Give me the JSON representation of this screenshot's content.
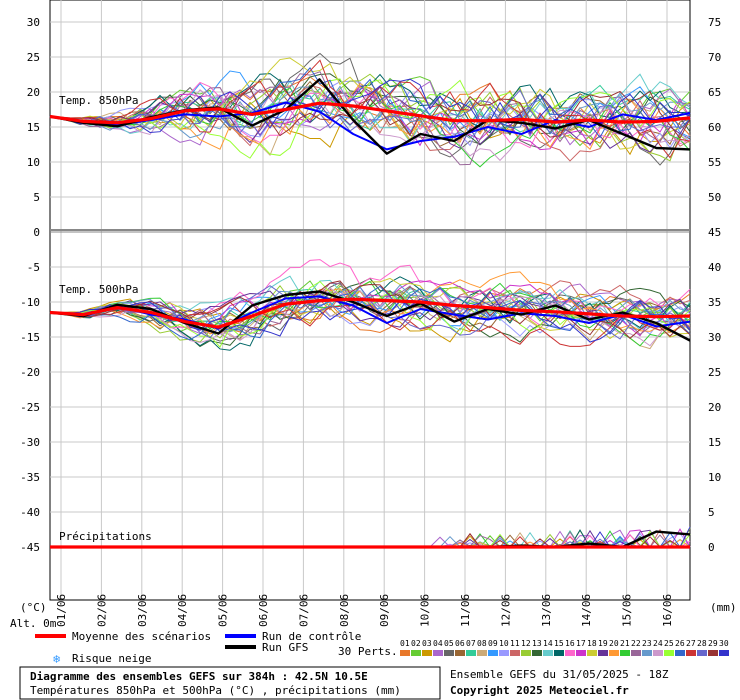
{
  "chart_data": {
    "type": "line",
    "title": "Diagramme des ensembles GEFS sur 384h : 42.5N 10.5E",
    "subtitle": "Températures 850hPa et 500hPa (°C) , précipitations (mm)",
    "run_info": "Ensemble GEFS du 31/05/2025 - 18Z",
    "copyright": "Copyright 2025 Meteociel.fr",
    "left_unit": "(°C)",
    "right_unit": "(mm)",
    "altitude": "Alt. 0m",
    "left_ticks": [
      30,
      25,
      20,
      15,
      10,
      5,
      0,
      -5,
      -10,
      -15,
      -20,
      -25,
      -30,
      -35,
      -40,
      -45
    ],
    "right_ticks": [
      75,
      70,
      65,
      60,
      55,
      50,
      45,
      40,
      35,
      30,
      25,
      20,
      15,
      10,
      5,
      0
    ],
    "dates": [
      "01/06",
      "02/06",
      "03/06",
      "04/06",
      "05/06",
      "06/06",
      "07/06",
      "08/06",
      "09/06",
      "10/06",
      "11/06",
      "12/06",
      "13/06",
      "14/06",
      "15/06",
      "16/06"
    ],
    "panels": {
      "t850": "Temp. 850hPa",
      "t500": "Temp. 500hPa",
      "precip": "Précipitations"
    },
    "legend": {
      "mean": "Moyenne des scénarios",
      "control": "Run de contrôle",
      "gfs": "Run GFS",
      "snow": "Risque neige",
      "perts": "30 Perts.",
      "mean_color": "#ff0000",
      "control_color": "#0000ff",
      "gfs_color": "#000000",
      "snow_color": "#3399ff"
    },
    "pert_labels": [
      "01",
      "02",
      "03",
      "04",
      "05",
      "06",
      "07",
      "08",
      "09",
      "10",
      "11",
      "12",
      "13",
      "14",
      "15",
      "16",
      "17",
      "18",
      "19",
      "20",
      "21",
      "22",
      "23",
      "24",
      "25",
      "26",
      "27",
      "28",
      "29",
      "30"
    ],
    "pert_colors": [
      "#e8782a",
      "#66cc33",
      "#cc9900",
      "#aa66cc",
      "#666666",
      "#996633",
      "#33cc99",
      "#ccaa77",
      "#3399ff",
      "#9999ff",
      "#cc6666",
      "#99cc33",
      "#336633",
      "#66cccc",
      "#006666",
      "#ff66cc",
      "#cc33cc",
      "#cccc33",
      "#663399",
      "#ff9933",
      "#33cc33",
      "#996699",
      "#6699cc",
      "#cc99cc",
      "#99ff33",
      "#3366cc",
      "#cc3333",
      "#6666cc",
      "#993333",
      "#3333cc"
    ],
    "series": [
      {
        "name": "Moyenne des scénarios",
        "t850": [
          16.5,
          15.8,
          15.6,
          16.2,
          17.3,
          17.6,
          16.8,
          17.5,
          18.4,
          18.0,
          17.3,
          16.6,
          15.9,
          15.9,
          16.1,
          15.7,
          16.0,
          15.7,
          15.8,
          16.3
        ],
        "t500": [
          -11.5,
          -11.8,
          -10.8,
          -11.5,
          -12.8,
          -13.6,
          -12.0,
          -10.3,
          -9.8,
          -9.6,
          -9.8,
          -10.0,
          -10.5,
          -10.8,
          -11.2,
          -11.4,
          -11.7,
          -12.0,
          -12.1,
          -12.0
        ],
        "precip": [
          0,
          0,
          0,
          0,
          0,
          0,
          0,
          0,
          0,
          0,
          0,
          0,
          0,
          0,
          0,
          0,
          0,
          0,
          0,
          0
        ]
      },
      {
        "name": "Run de contrôle",
        "t850": [
          16.5,
          15.6,
          15.3,
          16.0,
          16.8,
          16.5,
          17.0,
          18.5,
          17.2,
          14.0,
          11.8,
          13.0,
          13.6,
          15.0,
          14.0,
          16.0,
          15.0,
          16.8,
          16.0,
          17.0
        ],
        "t500": [
          -11.5,
          -12.0,
          -10.6,
          -11.8,
          -12.5,
          -13.8,
          -11.5,
          -9.5,
          -9.2,
          -10.5,
          -13.0,
          -11.0,
          -11.8,
          -12.5,
          -11.6,
          -12.0,
          -13.0,
          -11.8,
          -13.5,
          -12.8
        ],
        "precip": [
          0,
          0,
          0,
          0,
          0,
          0,
          0,
          0,
          0,
          0,
          0,
          0,
          0,
          0,
          0,
          0,
          0,
          0,
          0,
          0
        ]
      },
      {
        "name": "Run GFS",
        "t850": [
          16.5,
          15.6,
          15.1,
          16.4,
          17.4,
          17.8,
          15.2,
          17.5,
          21.8,
          16.0,
          11.2,
          14.0,
          13.0,
          16.0,
          15.6,
          14.8,
          16.0,
          14.0,
          12.0,
          11.8
        ],
        "t500": [
          -11.5,
          -12.0,
          -10.4,
          -11.0,
          -13.0,
          -14.5,
          -10.5,
          -9.0,
          -8.5,
          -10.0,
          -12.0,
          -10.2,
          -12.8,
          -11.0,
          -11.8,
          -10.5,
          -12.5,
          -11.5,
          -13.0,
          -15.5
        ],
        "precip": [
          0,
          0,
          0,
          0,
          0,
          0,
          0,
          0,
          0,
          0,
          0,
          0,
          0,
          0,
          0.2,
          0,
          0.5,
          0,
          2.2,
          1.8
        ]
      }
    ]
  }
}
